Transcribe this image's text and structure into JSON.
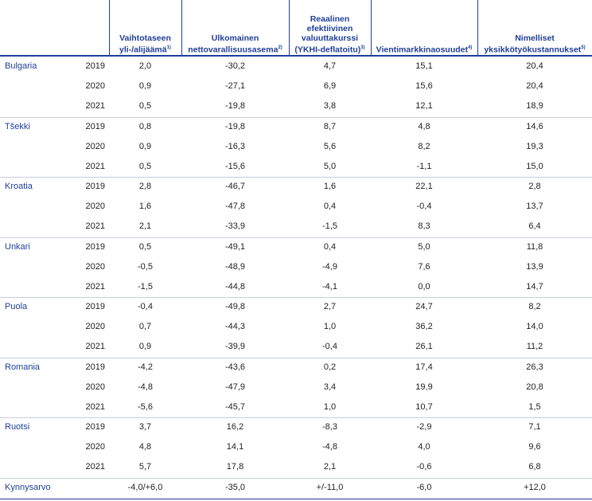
{
  "table": {
    "columns": [
      {
        "lines": [
          "Vaihtotaseen",
          "yli-/alijäämä"
        ],
        "note": "1)"
      },
      {
        "lines": [
          "Ulkomainen",
          "nettovarallisuusasema"
        ],
        "note": "2)"
      },
      {
        "lines": [
          "Reaalinen",
          "efektiivinen",
          "valuuttakurssi",
          "(YKHI-deflatoitu)"
        ],
        "note": "3)"
      },
      {
        "lines": [
          "Vientimarkkinaosuudet"
        ],
        "note": "4)"
      },
      {
        "lines": [
          "Nimelliset",
          "yksikkötyökustannukset"
        ],
        "note": "5)"
      }
    ],
    "groups": [
      {
        "country": "Bulgaria",
        "rows": [
          {
            "year": "2019",
            "values": [
              "2,0",
              "-30,2",
              "4,7",
              "15,1",
              "20,4"
            ]
          },
          {
            "year": "2020",
            "values": [
              "0,9",
              "-27,1",
              "6,9",
              "15,6",
              "20,4"
            ]
          },
          {
            "year": "2021",
            "values": [
              "0,5",
              "-19,8",
              "3,8",
              "12,1",
              "18,9"
            ]
          }
        ]
      },
      {
        "country": "Tšekki",
        "rows": [
          {
            "year": "2019",
            "values": [
              "0,8",
              "-19,8",
              "8,7",
              "4,8",
              "14,6"
            ]
          },
          {
            "year": "2020",
            "values": [
              "0,9",
              "-16,3",
              "5,6",
              "8,2",
              "19,3"
            ]
          },
          {
            "year": "2021",
            "values": [
              "0,5",
              "-15,6",
              "5,0",
              "-1,1",
              "15,0"
            ]
          }
        ]
      },
      {
        "country": "Kroatia",
        "rows": [
          {
            "year": "2019",
            "values": [
              "2,8",
              "-46,7",
              "1,6",
              "22,1",
              "2,8"
            ]
          },
          {
            "year": "2020",
            "values": [
              "1,6",
              "-47,8",
              "0,4",
              "-0,4",
              "13,7"
            ]
          },
          {
            "year": "2021",
            "values": [
              "2,1",
              "-33,9",
              "-1,5",
              "8,3",
              "6,4"
            ]
          }
        ]
      },
      {
        "country": "Unkari",
        "rows": [
          {
            "year": "2019",
            "values": [
              "0,5",
              "-49,1",
              "0,4",
              "5,0",
              "11,8"
            ]
          },
          {
            "year": "2020",
            "values": [
              "-0,5",
              "-48,9",
              "-4,9",
              "7,6",
              "13,9"
            ]
          },
          {
            "year": "2021",
            "values": [
              "-1,5",
              "-44,8",
              "-4,1",
              "0,0",
              "14,7"
            ]
          }
        ]
      },
      {
        "country": "Puola",
        "rows": [
          {
            "year": "2019",
            "values": [
              "-0,4",
              "-49,8",
              "2,7",
              "24,7",
              "8,2"
            ]
          },
          {
            "year": "2020",
            "values": [
              "0,7",
              "-44,3",
              "1,0",
              "36,2",
              "14,0"
            ]
          },
          {
            "year": "2021",
            "values": [
              "0,9",
              "-39,9",
              "-0,4",
              "26,1",
              "11,2"
            ]
          }
        ]
      },
      {
        "country": "Romania",
        "rows": [
          {
            "year": "2019",
            "values": [
              "-4,2",
              "-43,6",
              "0,2",
              "17,4",
              "26,3"
            ]
          },
          {
            "year": "2020",
            "values": [
              "-4,8",
              "-47,9",
              "3,4",
              "19,9",
              "20,8"
            ]
          },
          {
            "year": "2021",
            "values": [
              "-5,6",
              "-45,7",
              "1,0",
              "10,7",
              "1,5"
            ]
          }
        ]
      },
      {
        "country": "Ruotsi",
        "rows": [
          {
            "year": "2019",
            "values": [
              "3,7",
              "16,2",
              "-8,3",
              "-2,9",
              "7,1"
            ]
          },
          {
            "year": "2020",
            "values": [
              "4,8",
              "14,1",
              "-4,8",
              "4,0",
              "9,6"
            ]
          },
          {
            "year": "2021",
            "values": [
              "5,7",
              "17,8",
              "2,1",
              "-0,6",
              "6,8"
            ]
          }
        ]
      }
    ],
    "threshold": {
      "label": "Kynnysarvo",
      "values": [
        "-4,0/+6,0",
        "-35,0",
        "+/-11,0",
        "-6,0",
        "+12,0"
      ]
    }
  }
}
